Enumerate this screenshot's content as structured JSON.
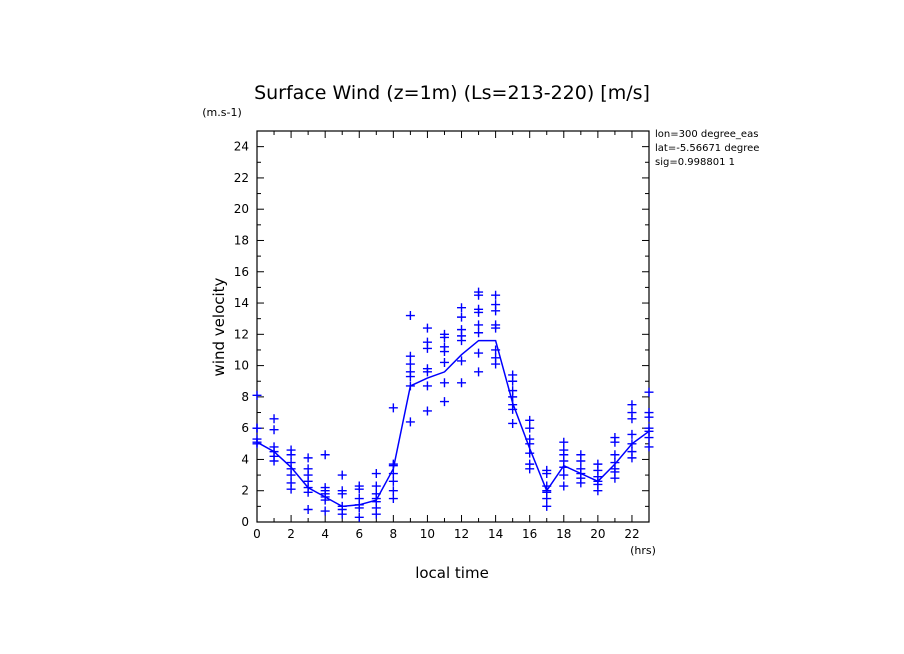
{
  "chart_data": {
    "type": "scatter",
    "title": "Surface Wind (z=1m) (Ls=213-220) [m/s]",
    "y_unit": "(m.s-1)",
    "x_unit": "(hrs)",
    "xlabel": "local time",
    "ylabel": "wind velocity",
    "xlim": [
      0,
      23
    ],
    "ylim": [
      0,
      25
    ],
    "x_ticks": [
      0,
      2,
      4,
      6,
      8,
      10,
      12,
      14,
      16,
      18,
      20,
      22
    ],
    "y_ticks": [
      0,
      2,
      4,
      6,
      8,
      10,
      12,
      14,
      16,
      18,
      20,
      22,
      24
    ],
    "grid": false,
    "color": "#0000ff",
    "info_lines": [
      "lon=300 degree_eas",
      "lat=-5.56671 degree",
      "sig=0.998801 1"
    ],
    "mean_line": {
      "x": [
        0,
        1,
        2,
        3,
        4,
        5,
        6,
        7,
        8,
        9,
        10,
        11,
        12,
        13,
        14,
        15,
        16,
        17,
        18,
        19,
        20,
        21,
        22,
        23
      ],
      "y": [
        5.1,
        4.5,
        3.5,
        2.2,
        1.6,
        1.0,
        1.1,
        1.4,
        3.4,
        8.7,
        9.2,
        9.6,
        10.7,
        11.6,
        11.6,
        7.6,
        4.7,
        2.0,
        3.6,
        3.1,
        2.6,
        3.7,
        5.0,
        5.8
      ]
    },
    "points": [
      {
        "x": 0,
        "values": [
          8.1,
          6.0,
          6.0,
          5.3,
          5.1,
          5.0
        ]
      },
      {
        "x": 1,
        "values": [
          6.6,
          5.9,
          4.8,
          4.5,
          4.2,
          3.9
        ]
      },
      {
        "x": 2,
        "values": [
          4.6,
          4.3,
          3.8,
          3.4,
          3.0,
          2.5,
          2.1
        ]
      },
      {
        "x": 3,
        "values": [
          4.1,
          3.4,
          3.0,
          2.6,
          2.2,
          1.9,
          0.8
        ]
      },
      {
        "x": 4,
        "values": [
          4.3,
          2.2,
          2.0,
          1.8,
          1.6,
          1.4,
          0.7
        ]
      },
      {
        "x": 5,
        "values": [
          3.0,
          2.0,
          1.8,
          1.0,
          0.8,
          0.5
        ]
      },
      {
        "x": 6,
        "values": [
          2.3,
          2.1,
          1.5,
          1.1,
          0.9,
          0.3
        ]
      },
      {
        "x": 7,
        "values": [
          3.1,
          2.3,
          1.8,
          1.5,
          1.3,
          0.9,
          0.5
        ]
      },
      {
        "x": 8,
        "values": [
          7.3,
          3.7,
          3.6,
          3.1,
          2.6,
          2.0,
          1.5
        ]
      },
      {
        "x": 9,
        "values": [
          13.2,
          10.6,
          10.1,
          9.6,
          9.3,
          8.7,
          6.4
        ]
      },
      {
        "x": 10,
        "values": [
          12.4,
          11.5,
          11.1,
          9.8,
          9.6,
          8.7,
          7.1
        ]
      },
      {
        "x": 11,
        "values": [
          12.0,
          11.8,
          11.2,
          10.9,
          10.2,
          8.9,
          7.7
        ]
      },
      {
        "x": 12,
        "values": [
          13.7,
          13.1,
          12.3,
          11.9,
          11.6,
          10.3,
          8.9
        ]
      },
      {
        "x": 13,
        "values": [
          14.7,
          14.5,
          13.6,
          13.4,
          12.6,
          12.1,
          10.8,
          9.6
        ]
      },
      {
        "x": 14,
        "values": [
          14.5,
          13.9,
          13.5,
          12.6,
          12.4,
          11.0,
          10.5,
          10.1
        ]
      },
      {
        "x": 15,
        "values": [
          9.4,
          9.0,
          8.4,
          8.0,
          7.5,
          7.2,
          6.3
        ]
      },
      {
        "x": 16,
        "values": [
          6.5,
          6.0,
          5.3,
          5.0,
          4.4,
          3.7,
          3.4
        ]
      },
      {
        "x": 17,
        "values": [
          3.3,
          3.1,
          2.3,
          2.0,
          1.9,
          1.5,
          1.0
        ]
      },
      {
        "x": 18,
        "values": [
          5.1,
          4.6,
          4.3,
          3.9,
          3.5,
          3.0,
          2.3
        ]
      },
      {
        "x": 19,
        "values": [
          4.3,
          3.9,
          3.4,
          3.1,
          2.8,
          2.5
        ]
      },
      {
        "x": 20,
        "values": [
          3.7,
          3.3,
          2.9,
          2.6,
          2.4,
          2.0
        ]
      },
      {
        "x": 21,
        "values": [
          5.4,
          5.1,
          4.3,
          3.8,
          3.4,
          3.2,
          2.8
        ]
      },
      {
        "x": 22,
        "values": [
          7.5,
          7.0,
          6.6,
          5.6,
          5.0,
          4.5,
          4.1
        ]
      },
      {
        "x": 23,
        "values": [
          8.3,
          7.0,
          6.7,
          6.0,
          5.8,
          5.4,
          4.8
        ]
      }
    ]
  }
}
